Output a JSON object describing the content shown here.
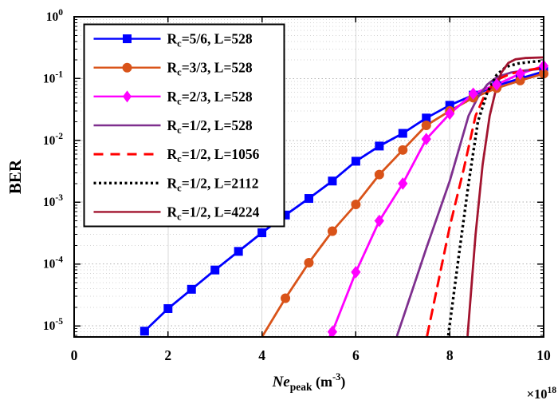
{
  "figure": {
    "background": "#ffffff",
    "ylabel": "BER"
  },
  "chart_data": {
    "type": "line",
    "title": "",
    "ylabel": "BER",
    "xlabel": {
      "main": "Ne",
      "sub": "peak",
      "unit_open": " (m",
      "unit_exp": "-3",
      "unit_close": ")"
    },
    "x_multiplier": {
      "base": "×10",
      "exp": "18"
    },
    "xlim": [
      0,
      10
    ],
    "x_ticks": [
      0,
      2,
      4,
      6,
      8,
      10
    ],
    "x_gridlines": [
      2,
      4,
      6,
      8
    ],
    "y_tick_exponents": [
      0,
      -1,
      -2,
      -3,
      -4,
      -5
    ],
    "ylim_exp": [
      0,
      -5.18
    ],
    "yscale": "log",
    "grid": true,
    "legend_position": "top-left",
    "series": [
      {
        "name": "Rc=5/6, L=528",
        "label": {
          "pre": "R",
          "sub": "c",
          "rest": "=5/6, L=528"
        },
        "color": "#0000ff",
        "line": "solid",
        "marker": "square",
        "marker_from": 0,
        "points": [
          [
            1.5,
            8.2e-06
          ],
          [
            2,
            1.9e-05
          ],
          [
            2.5,
            3.9e-05
          ],
          [
            3,
            8e-05
          ],
          [
            3.5,
            0.00016
          ],
          [
            4,
            0.00032
          ],
          [
            4.5,
            0.00062
          ],
          [
            5,
            0.00115
          ],
          [
            5.5,
            0.0022
          ],
          [
            6,
            0.0046
          ],
          [
            6.5,
            0.0081
          ],
          [
            7,
            0.013
          ],
          [
            7.5,
            0.023
          ],
          [
            8,
            0.037
          ],
          [
            8.5,
            0.054
          ],
          [
            9,
            0.077
          ],
          [
            9.5,
            0.1
          ],
          [
            10,
            0.13
          ]
        ]
      },
      {
        "name": "Rc=3/3, L=528",
        "label": {
          "pre": "R",
          "sub": "c",
          "rest": "=3/3, L=528"
        },
        "color": "#d95319",
        "line": "solid",
        "marker": "circle",
        "marker_from": 1,
        "points": [
          [
            4.02,
            7e-06
          ],
          [
            4.5,
            2.8e-05
          ],
          [
            5,
            0.000105
          ],
          [
            5.5,
            0.00034
          ],
          [
            6,
            0.00092
          ],
          [
            6.5,
            0.0028
          ],
          [
            7,
            0.007
          ],
          [
            7.5,
            0.0175
          ],
          [
            8,
            0.03
          ],
          [
            8.5,
            0.049
          ],
          [
            9,
            0.07
          ],
          [
            9.5,
            0.093
          ],
          [
            10,
            0.12
          ]
        ]
      },
      {
        "name": "Rc=2/3, L=528",
        "label": {
          "pre": "R",
          "sub": "c",
          "rest": "=2/3, L=528"
        },
        "color": "#ff00ff",
        "line": "solid",
        "marker": "diamond",
        "marker_from": 1,
        "points": [
          [
            5.45,
            7e-06
          ],
          [
            5.5,
            8e-06
          ],
          [
            6,
            7.4e-05
          ],
          [
            6.5,
            0.0005
          ],
          [
            7,
            0.002
          ],
          [
            7.5,
            0.0105
          ],
          [
            8,
            0.027
          ],
          [
            8.5,
            0.057
          ],
          [
            9,
            0.08
          ],
          [
            9.5,
            0.12
          ],
          [
            10,
            0.16
          ]
        ]
      },
      {
        "name": "Rc=1/2, L=528",
        "label": {
          "pre": "R",
          "sub": "c",
          "rest": "=1/2, L=528"
        },
        "color": "#7e2f8e",
        "line": "solid",
        "marker": "none",
        "points": [
          [
            6.88,
            7e-06
          ],
          [
            7.0,
            1.3e-05
          ],
          [
            7.5,
            0.00018
          ],
          [
            8.0,
            0.0022
          ],
          [
            8.4,
            0.025
          ],
          [
            8.6,
            0.05
          ],
          [
            8.8,
            0.08
          ],
          [
            9.0,
            0.105
          ],
          [
            9.3,
            0.125
          ],
          [
            9.6,
            0.135
          ],
          [
            10,
            0.145
          ]
        ]
      },
      {
        "name": "Rc=1/2, L=1056",
        "label": {
          "pre": "R",
          "sub": "c",
          "rest": "=1/2, L=1056"
        },
        "color": "#ff0000",
        "line": "dashed",
        "marker": "none",
        "points": [
          [
            7.52,
            7e-06
          ],
          [
            8.0,
            0.0004
          ],
          [
            8.3,
            0.0035
          ],
          [
            8.55,
            0.025
          ],
          [
            8.75,
            0.055
          ],
          [
            9.0,
            0.095
          ],
          [
            9.3,
            0.12
          ],
          [
            9.6,
            0.135
          ],
          [
            10,
            0.15
          ]
        ]
      },
      {
        "name": "Rc=1/2, L=2112",
        "label": {
          "pre": "R",
          "sub": "c",
          "rest": "=1/2, L=2112"
        },
        "color": "#000000",
        "line": "dotted",
        "marker": "none",
        "points": [
          [
            7.97,
            7e-06
          ],
          [
            8.2,
            0.00015
          ],
          [
            8.4,
            0.002
          ],
          [
            8.6,
            0.02
          ],
          [
            8.8,
            0.06
          ],
          [
            9.0,
            0.115
          ],
          [
            9.2,
            0.155
          ],
          [
            9.45,
            0.175
          ],
          [
            9.7,
            0.185
          ],
          [
            10,
            0.195
          ]
        ]
      },
      {
        "name": "Rc=1/2, L=4224",
        "label": {
          "pre": "R",
          "sub": "c",
          "rest": "=1/2, L=4224"
        },
        "color": "#a2142f",
        "line": "solid",
        "marker": "none",
        "points": [
          [
            8.38,
            7e-06
          ],
          [
            8.55,
            0.0003
          ],
          [
            8.7,
            0.004
          ],
          [
            8.85,
            0.025
          ],
          [
            9.0,
            0.075
          ],
          [
            9.1,
            0.125
          ],
          [
            9.25,
            0.18
          ],
          [
            9.4,
            0.205
          ],
          [
            9.6,
            0.215
          ],
          [
            10,
            0.22
          ]
        ]
      }
    ]
  }
}
